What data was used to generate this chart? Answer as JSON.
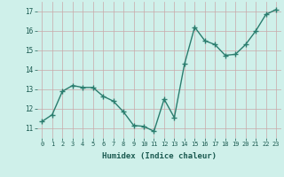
{
  "x": [
    0,
    1,
    2,
    3,
    4,
    5,
    6,
    7,
    8,
    9,
    10,
    11,
    12,
    13,
    14,
    15,
    16,
    17,
    18,
    19,
    20,
    21,
    22,
    23
  ],
  "y": [
    11.35,
    11.7,
    12.9,
    13.2,
    13.1,
    13.1,
    12.65,
    12.4,
    11.85,
    11.15,
    11.1,
    10.85,
    12.5,
    11.55,
    14.3,
    16.2,
    15.5,
    15.3,
    14.75,
    14.8,
    15.3,
    16.0,
    16.85,
    17.1
  ],
  "line_color": "#2a7d6e",
  "marker": "+",
  "bg_color": "#cff0ea",
  "grid_color": "#c9a8a8",
  "xlabel": "Humidex (Indice chaleur)",
  "xlim": [
    -0.5,
    23.5
  ],
  "ylim": [
    10.5,
    17.5
  ],
  "yticks": [
    11,
    12,
    13,
    14,
    15,
    16,
    17
  ],
  "xticks": [
    0,
    1,
    2,
    3,
    4,
    5,
    6,
    7,
    8,
    9,
    10,
    11,
    12,
    13,
    14,
    15,
    16,
    17,
    18,
    19,
    20,
    21,
    22,
    23
  ],
  "xtick_labels": [
    "0",
    "1",
    "2",
    "3",
    "4",
    "5",
    "6",
    "7",
    "8",
    "9",
    "10",
    "11",
    "12",
    "13",
    "14",
    "15",
    "16",
    "17",
    "18",
    "19",
    "20",
    "21",
    "22",
    "23"
  ],
  "linewidth": 1.0,
  "markersize": 4,
  "markeredgewidth": 1.0
}
